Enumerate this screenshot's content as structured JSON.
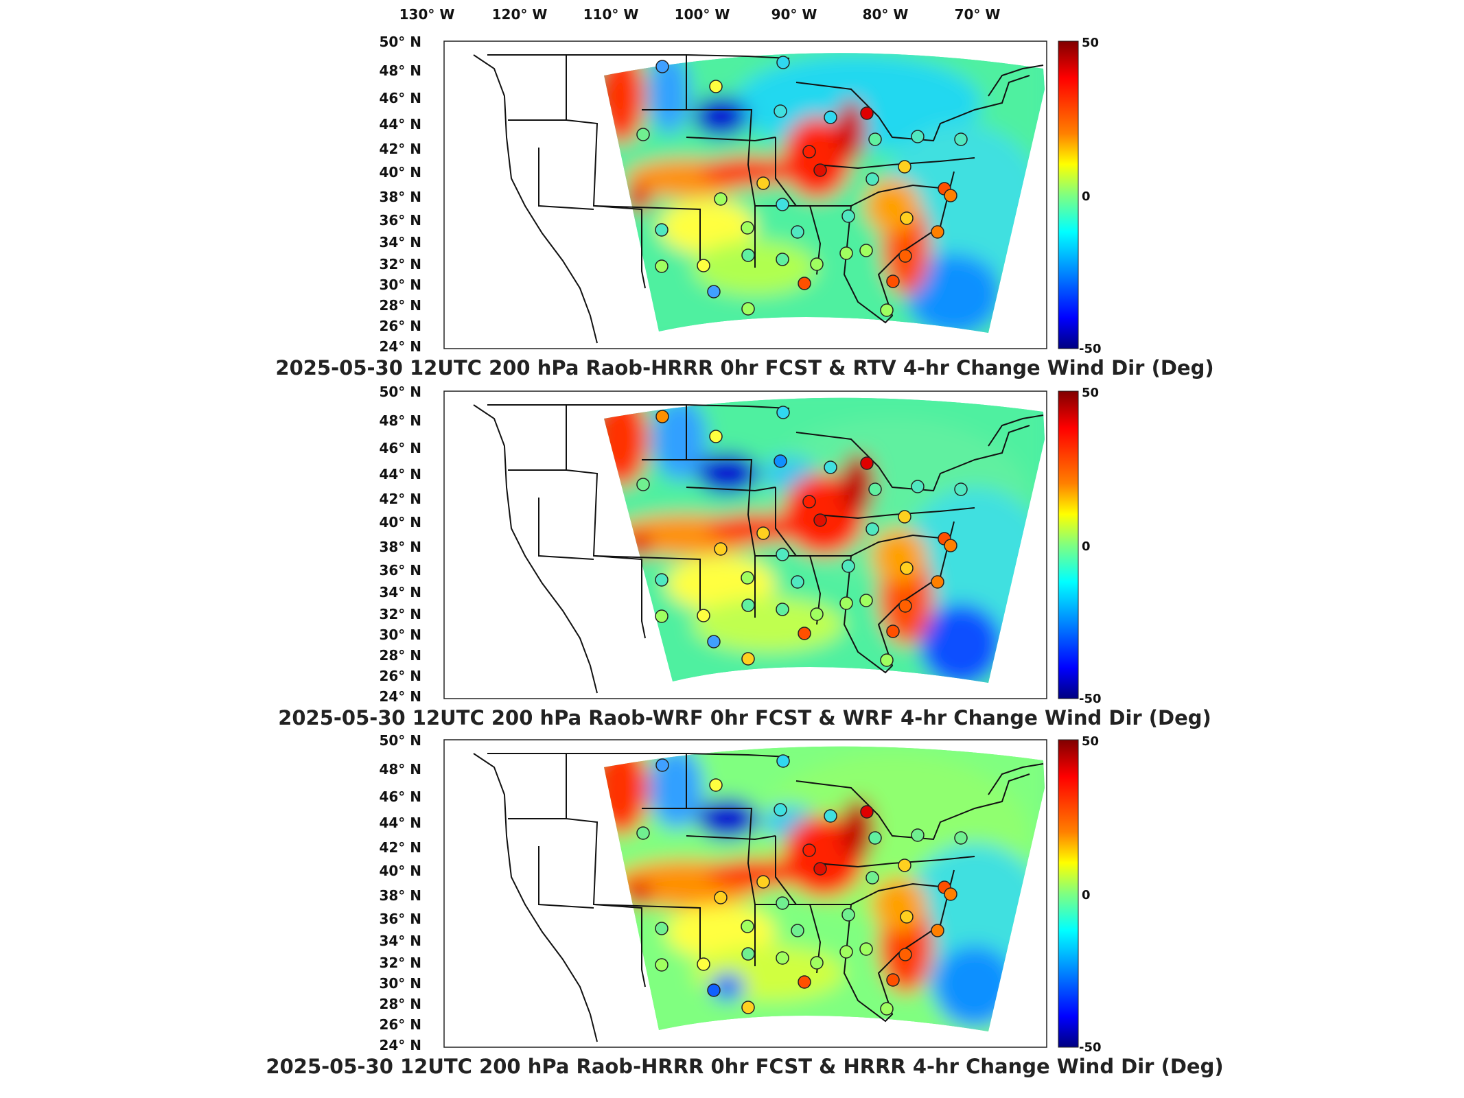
{
  "lon_labels": [
    "130° W",
    "120° W",
    "110° W",
    "100° W",
    "90° W",
    "80° W",
    "70° W"
  ],
  "lat_labels": [
    "50° N",
    "48° N",
    "46° N",
    "44° N",
    "42° N",
    "40° N",
    "38° N",
    "36° N",
    "34° N",
    "32° N",
    "30° N",
    "28° N",
    "26° N",
    "24° N"
  ],
  "colorbar": {
    "max_label": "50",
    "mid_label": "0",
    "min_label": "-50",
    "colors": [
      "#800000",
      "#ff0000",
      "#ff8000",
      "#ffff00",
      "#80ff80",
      "#00ffff",
      "#0080ff",
      "#0000ff",
      "#000080"
    ]
  },
  "panels": [
    {
      "title": "2025-05-30 12UTC 200 hPa Raob-HRRR 0hr FCST & RTV 4-hr Change Wind Dir (Deg)"
    },
    {
      "title": "2025-05-30 12UTC 200 hPa Raob-WRF 0hr FCST & WRF 4-hr Change Wind Dir (Deg)"
    },
    {
      "title": "2025-05-30 12UTC 200 hPa Raob-HRRR 0hr FCST & HRRR 4-hr Change Wind Dir (Deg)"
    }
  ]
}
